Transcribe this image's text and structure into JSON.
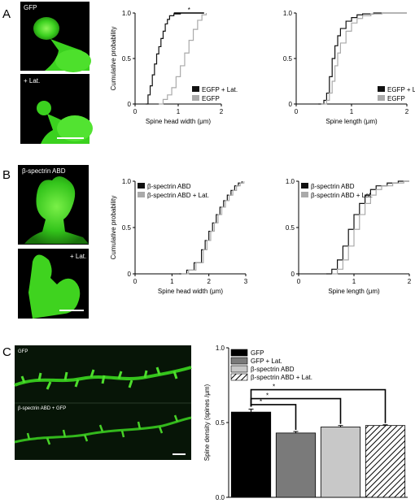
{
  "panels": {
    "A": {
      "letter": "A",
      "images": [
        "GFP",
        "+ Lat."
      ]
    },
    "B": {
      "letter": "B",
      "images": [
        "β-spectrin ABD",
        "+ Lat."
      ]
    },
    "C": {
      "letter": "C",
      "images": [
        "GFP",
        "β-spectrin ABD + GFP"
      ]
    }
  },
  "colors": {
    "dark": "#111111",
    "light": "#aaaaaa",
    "cell_green": "#3bd11f",
    "bar_gfp": "#000000",
    "bar_gfp_lat": "#7a7a7a",
    "bar_bspec": "#c8c8c8"
  },
  "chart_data": [
    {
      "id": "A-head",
      "type": "line",
      "xlabel": "Spine head width (μm)",
      "ylabel": "Cumulative probability",
      "xlim": [
        0,
        2
      ],
      "ylim": [
        0,
        1.0
      ],
      "xticks": [
        "0",
        "1",
        "2"
      ],
      "yticks": [
        "0",
        "0.5",
        "1.0"
      ],
      "legend_position": "bottom-right",
      "annotation": "*",
      "series": [
        {
          "name": "EGFP + Lat.",
          "color": "#111111",
          "x": [
            0.25,
            0.3,
            0.35,
            0.4,
            0.45,
            0.5,
            0.55,
            0.6,
            0.65,
            0.7,
            0.75,
            0.8,
            0.9,
            1.05
          ],
          "y": [
            0,
            0.1,
            0.2,
            0.32,
            0.44,
            0.55,
            0.63,
            0.72,
            0.8,
            0.88,
            0.93,
            0.97,
            0.99,
            1.0
          ]
        },
        {
          "name": "EGFP",
          "color": "#aaaaaa",
          "x": [
            0.55,
            0.65,
            0.75,
            0.85,
            0.95,
            1.05,
            1.15,
            1.25,
            1.35,
            1.45,
            1.55,
            1.65
          ],
          "y": [
            0,
            0.05,
            0.1,
            0.18,
            0.3,
            0.42,
            0.56,
            0.7,
            0.82,
            0.92,
            0.98,
            1.0
          ]
        }
      ]
    },
    {
      "id": "A-length",
      "type": "line",
      "xlabel": "Spine length (μm)",
      "ylabel": "",
      "xlim": [
        0,
        2
      ],
      "ylim": [
        0,
        1.0
      ],
      "xticks": [
        "0",
        "1",
        "2"
      ],
      "yticks": [
        "0",
        "0.5",
        "1.0"
      ],
      "legend_position": "bottom-right",
      "series": [
        {
          "name": "EGFP + Lat.",
          "color": "#111111",
          "x": [
            0.4,
            0.5,
            0.55,
            0.6,
            0.65,
            0.7,
            0.75,
            0.8,
            0.9,
            1.0,
            1.1,
            1.2,
            1.4,
            2.0
          ],
          "y": [
            0,
            0.04,
            0.12,
            0.3,
            0.5,
            0.64,
            0.75,
            0.83,
            0.91,
            0.95,
            0.98,
            0.99,
            1.0,
            1.0
          ]
        },
        {
          "name": "EGFP",
          "color": "#aaaaaa",
          "x": [
            0.45,
            0.55,
            0.6,
            0.65,
            0.7,
            0.75,
            0.8,
            0.9,
            1.0,
            1.1,
            1.2,
            1.35,
            1.55,
            2.0
          ],
          "y": [
            0,
            0.04,
            0.12,
            0.25,
            0.42,
            0.56,
            0.67,
            0.8,
            0.89,
            0.94,
            0.97,
            0.99,
            1.0,
            1.0
          ]
        }
      ]
    },
    {
      "id": "B-head",
      "type": "line",
      "xlabel": "Spine head width (μm)",
      "ylabel": "Cumulative probability",
      "xlim": [
        0,
        3
      ],
      "ylim": [
        0,
        1.0
      ],
      "xticks": [
        "0",
        "1",
        "2",
        "3"
      ],
      "yticks": [
        "0",
        "0.5",
        "1.0"
      ],
      "legend_position": "top-left",
      "series": [
        {
          "name": "β-spectrin ABD",
          "color": "#111111",
          "x": [
            1.2,
            1.4,
            1.6,
            1.8,
            1.9,
            2.0,
            2.1,
            2.2,
            2.3,
            2.4,
            2.5,
            2.6,
            2.7,
            2.8,
            2.9
          ],
          "y": [
            0,
            0.04,
            0.12,
            0.26,
            0.36,
            0.46,
            0.55,
            0.64,
            0.72,
            0.79,
            0.85,
            0.9,
            0.95,
            0.98,
            1.0
          ]
        },
        {
          "name": "β-spectrin ABD + Lat.",
          "color": "#aaaaaa",
          "x": [
            1.25,
            1.45,
            1.65,
            1.85,
            1.95,
            2.05,
            2.15,
            2.25,
            2.35,
            2.45,
            2.55,
            2.65,
            2.75,
            2.85,
            2.95
          ],
          "y": [
            0,
            0.04,
            0.12,
            0.26,
            0.36,
            0.46,
            0.55,
            0.64,
            0.72,
            0.79,
            0.85,
            0.9,
            0.95,
            0.98,
            1.0
          ]
        }
      ]
    },
    {
      "id": "B-length",
      "type": "line",
      "xlabel": "Spine length (μm)",
      "ylabel": "",
      "xlim": [
        0,
        2
      ],
      "ylim": [
        0,
        1.0
      ],
      "xticks": [
        "0",
        "1",
        "2"
      ],
      "yticks": [
        "0",
        "0.5",
        "1.0"
      ],
      "legend_position": "top-left",
      "series": [
        {
          "name": "β-spectrin ABD",
          "color": "#111111",
          "x": [
            0.5,
            0.6,
            0.7,
            0.8,
            0.9,
            1.0,
            1.1,
            1.2,
            1.3,
            1.4,
            1.6,
            1.8,
            2.0
          ],
          "y": [
            0,
            0.05,
            0.15,
            0.3,
            0.48,
            0.64,
            0.76,
            0.85,
            0.91,
            0.95,
            0.98,
            1.0,
            1.0
          ]
        },
        {
          "name": "β-spectrin ABD + Lat.",
          "color": "#aaaaaa",
          "x": [
            0.6,
            0.7,
            0.8,
            0.9,
            1.0,
            1.1,
            1.2,
            1.3,
            1.4,
            1.5,
            1.7,
            1.9,
            2.0
          ],
          "y": [
            0,
            0.05,
            0.15,
            0.3,
            0.48,
            0.64,
            0.76,
            0.85,
            0.91,
            0.95,
            0.98,
            1.0,
            1.0
          ]
        }
      ]
    },
    {
      "id": "C-density",
      "type": "bar",
      "ylabel": "Spine density (spines /μm)",
      "ylim": [
        0,
        1.0
      ],
      "yticks": [
        "0.0",
        "0.5",
        "1.0"
      ],
      "legend_position": "top-left",
      "significance": [
        "*",
        "*",
        "*"
      ],
      "categories": [
        "GFP",
        "GFP + Lat.",
        "β-spectrin ABD",
        "β-spectrin ABD + Lat."
      ],
      "values": [
        0.57,
        0.43,
        0.47,
        0.48
      ],
      "errors": [
        0.02,
        0.01,
        0.01,
        0.005
      ]
    }
  ]
}
